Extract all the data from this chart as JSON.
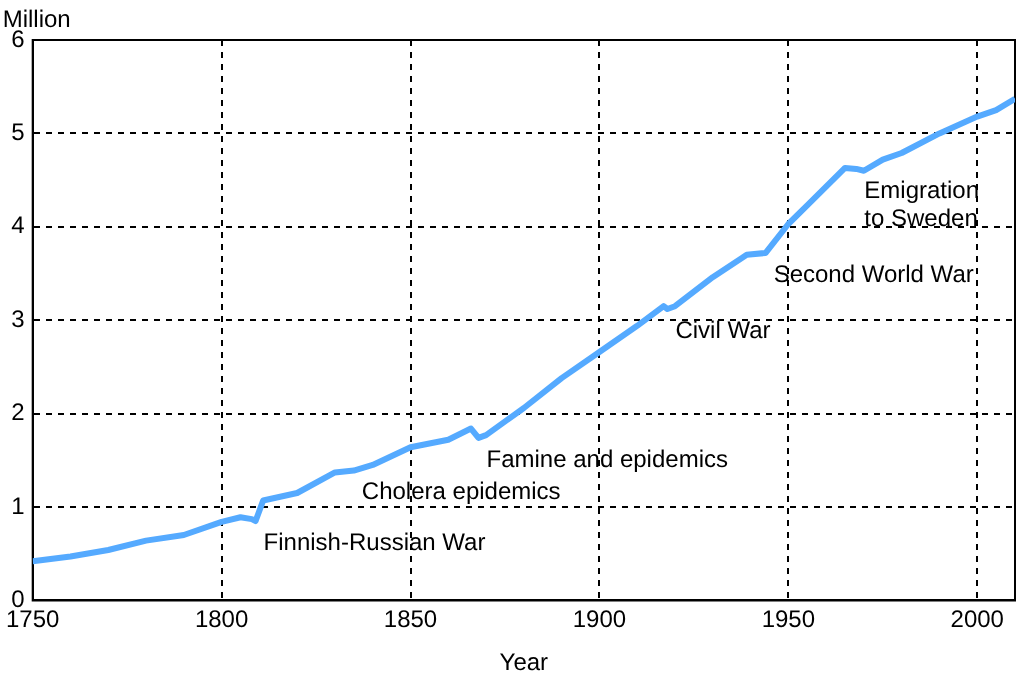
{
  "chart_data": {
    "type": "line",
    "xlabel": "Year",
    "ylabel": "Million",
    "x": [
      1750,
      1760,
      1770,
      1780,
      1790,
      1800,
      1805,
      1808,
      1809,
      1811,
      1820,
      1830,
      1835,
      1840,
      1850,
      1860,
      1866,
      1868,
      1870,
      1880,
      1890,
      1900,
      1910,
      1917,
      1918,
      1920,
      1930,
      1939,
      1944,
      1950,
      1955,
      1960,
      1965,
      1968,
      1970,
      1975,
      1980,
      1990,
      2000,
      2005,
      2010
    ],
    "series": [
      {
        "color": "#55aaff",
        "values": [
          0.42,
          0.47,
          0.54,
          0.64,
          0.7,
          0.84,
          0.89,
          0.87,
          0.85,
          1.07,
          1.15,
          1.37,
          1.39,
          1.45,
          1.64,
          1.72,
          1.84,
          1.74,
          1.77,
          2.06,
          2.38,
          2.66,
          2.94,
          3.15,
          3.12,
          3.15,
          3.46,
          3.7,
          3.72,
          4.03,
          4.23,
          4.43,
          4.63,
          4.62,
          4.6,
          4.72,
          4.79,
          5.0,
          5.18,
          5.25,
          5.37
        ]
      }
    ],
    "xlim": [
      1750,
      2010
    ],
    "xticks": [
      1750,
      1800,
      1850,
      1900,
      1950,
      2000
    ],
    "ylim": [
      0,
      6
    ],
    "yticks": [
      0,
      1,
      2,
      3,
      4,
      5,
      6
    ],
    "grid": true,
    "legend": false,
    "marker": "none",
    "line_style": "solid",
    "annotations": [
      {
        "text": "Finnish-Russian War",
        "x": 1809,
        "y": 0.85
      },
      {
        "text": "Cholera epidemics",
        "x": 1835,
        "y": 1.39
      },
      {
        "text": "Famine and epidemics",
        "x": 1868,
        "y": 1.74
      },
      {
        "text": "Civil War",
        "x": 1918,
        "y": 3.12
      },
      {
        "text": "Second World War",
        "x": 1944,
        "y": 3.72
      },
      {
        "text": "Emigration\nto Sweden",
        "x": 1968,
        "y": 4.62
      }
    ]
  }
}
